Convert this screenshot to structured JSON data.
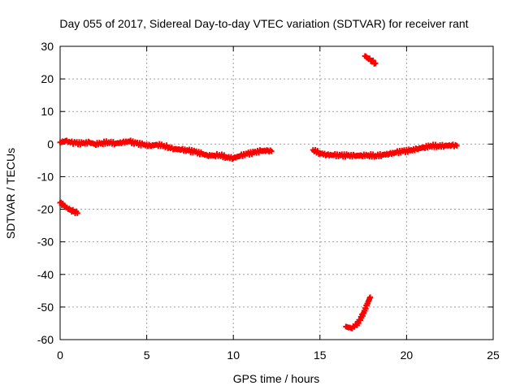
{
  "chart_data": {
    "type": "scatter",
    "title": "Day 055 of 2017, Sidereal Day-to-day VTEC variation (SDTVAR) for receiver rant",
    "xlabel": "GPS time / hours",
    "ylabel": "SDTVAR / TECUs",
    "xlim": [
      0,
      25
    ],
    "ylim": [
      -60,
      30
    ],
    "xticks": [
      0,
      5,
      10,
      15,
      20,
      25
    ],
    "yticks": [
      -60,
      -50,
      -40,
      -30,
      -20,
      -10,
      0,
      10,
      20,
      30
    ],
    "grid": true,
    "marker_color": "#ff0000",
    "series": [
      {
        "name": "SDTVAR",
        "points": [
          [
            0.0,
            0.5
          ],
          [
            0.3,
            1.0
          ],
          [
            0.6,
            0.5
          ],
          [
            0.9,
            0.3
          ],
          [
            1.3,
            0.2
          ],
          [
            1.7,
            0.5
          ],
          [
            2.0,
            0.0
          ],
          [
            2.4,
            0.3
          ],
          [
            2.8,
            0.6
          ],
          [
            3.2,
            0.2
          ],
          [
            3.6,
            0.5
          ],
          [
            4.0,
            0.8
          ],
          [
            4.4,
            0.2
          ],
          [
            4.8,
            -0.2
          ],
          [
            5.2,
            -0.5
          ],
          [
            5.6,
            -0.2
          ],
          [
            6.0,
            -0.5
          ],
          [
            6.3,
            -1.0
          ],
          [
            6.6,
            -1.5
          ],
          [
            7.0,
            -1.7
          ],
          [
            7.4,
            -2.0
          ],
          [
            7.8,
            -2.4
          ],
          [
            8.2,
            -3.0
          ],
          [
            8.5,
            -3.5
          ],
          [
            8.9,
            -3.5
          ],
          [
            9.2,
            -3.3
          ],
          [
            9.6,
            -4.0
          ],
          [
            10.0,
            -4.3
          ],
          [
            10.4,
            -3.6
          ],
          [
            10.8,
            -3.0
          ],
          [
            11.2,
            -2.6
          ],
          [
            11.6,
            -2.1
          ],
          [
            12.0,
            -2.0
          ],
          [
            12.2,
            -2.2
          ],
          [
            14.6,
            -1.8
          ],
          [
            15.0,
            -2.8
          ],
          [
            15.4,
            -3.3
          ],
          [
            15.8,
            -3.4
          ],
          [
            16.2,
            -3.5
          ],
          [
            16.6,
            -3.5
          ],
          [
            17.0,
            -3.6
          ],
          [
            17.4,
            -3.5
          ],
          [
            17.8,
            -3.4
          ],
          [
            18.2,
            -3.6
          ],
          [
            18.6,
            -3.3
          ],
          [
            19.0,
            -3.0
          ],
          [
            19.4,
            -2.6
          ],
          [
            19.8,
            -2.2
          ],
          [
            20.2,
            -2.0
          ],
          [
            20.6,
            -1.5
          ],
          [
            21.0,
            -1.0
          ],
          [
            21.4,
            -0.5
          ],
          [
            21.8,
            -0.6
          ],
          [
            22.2,
            -0.5
          ],
          [
            22.6,
            -0.4
          ],
          [
            22.9,
            -0.5
          ],
          [
            0.0,
            -18.0
          ],
          [
            0.2,
            -18.8
          ],
          [
            0.4,
            -19.5
          ],
          [
            0.6,
            -20.2
          ],
          [
            0.8,
            -20.7
          ],
          [
            1.0,
            -21.2
          ],
          [
            17.6,
            27.0
          ],
          [
            17.8,
            26.2
          ],
          [
            18.0,
            25.5
          ],
          [
            18.2,
            24.8
          ],
          [
            16.5,
            -56.0
          ],
          [
            16.8,
            -56.5
          ],
          [
            17.1,
            -55.5
          ],
          [
            17.3,
            -54.0
          ],
          [
            17.5,
            -52.0
          ],
          [
            17.7,
            -49.5
          ],
          [
            17.9,
            -47.0
          ]
        ]
      }
    ]
  }
}
